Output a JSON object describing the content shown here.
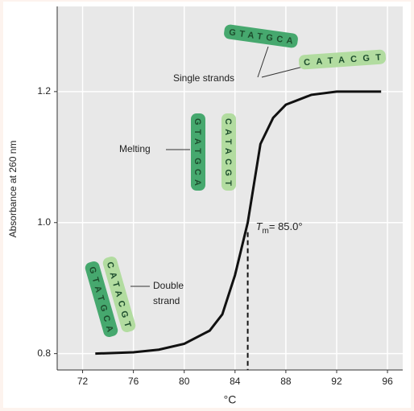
{
  "chart_data": {
    "type": "line",
    "x_label": "°C",
    "y_label": "Absorbance at 260 nm",
    "x": [
      73,
      76,
      78,
      80,
      82,
      83,
      84,
      84.5,
      85,
      85.5,
      86,
      87,
      88,
      90,
      92,
      95.5
    ],
    "series": [
      {
        "color": "#111111",
        "values": [
          0.8,
          0.802,
          0.806,
          0.815,
          0.835,
          0.86,
          0.92,
          0.96,
          1.0,
          1.06,
          1.12,
          1.16,
          1.18,
          1.195,
          1.2,
          1.2
        ]
      }
    ],
    "xlim": [
      70,
      97.2
    ],
    "xticks": [
      72,
      76,
      80,
      84,
      88,
      92,
      96
    ],
    "ylim": [
      0.775,
      1.33
    ],
    "yticks": [
      {
        "value": 0.8,
        "label": "0.8"
      },
      {
        "value": 1.0,
        "label": "1.0"
      },
      {
        "value": 1.2,
        "label": "1.2"
      }
    ],
    "grid": true,
    "tm": {
      "value": 85,
      "symbol": "T",
      "subscript": "m",
      "text": "= 85.0°"
    },
    "labels": {
      "single": "Single strands",
      "melting": "Melting",
      "double": [
        "Double",
        "strand"
      ]
    },
    "strands": {
      "single": [
        "GTATGCA",
        "CATACGT"
      ],
      "melting": [
        "GTATGCA",
        "CATACGT"
      ],
      "double": [
        "GTATGCA",
        "CATACGT"
      ]
    }
  }
}
